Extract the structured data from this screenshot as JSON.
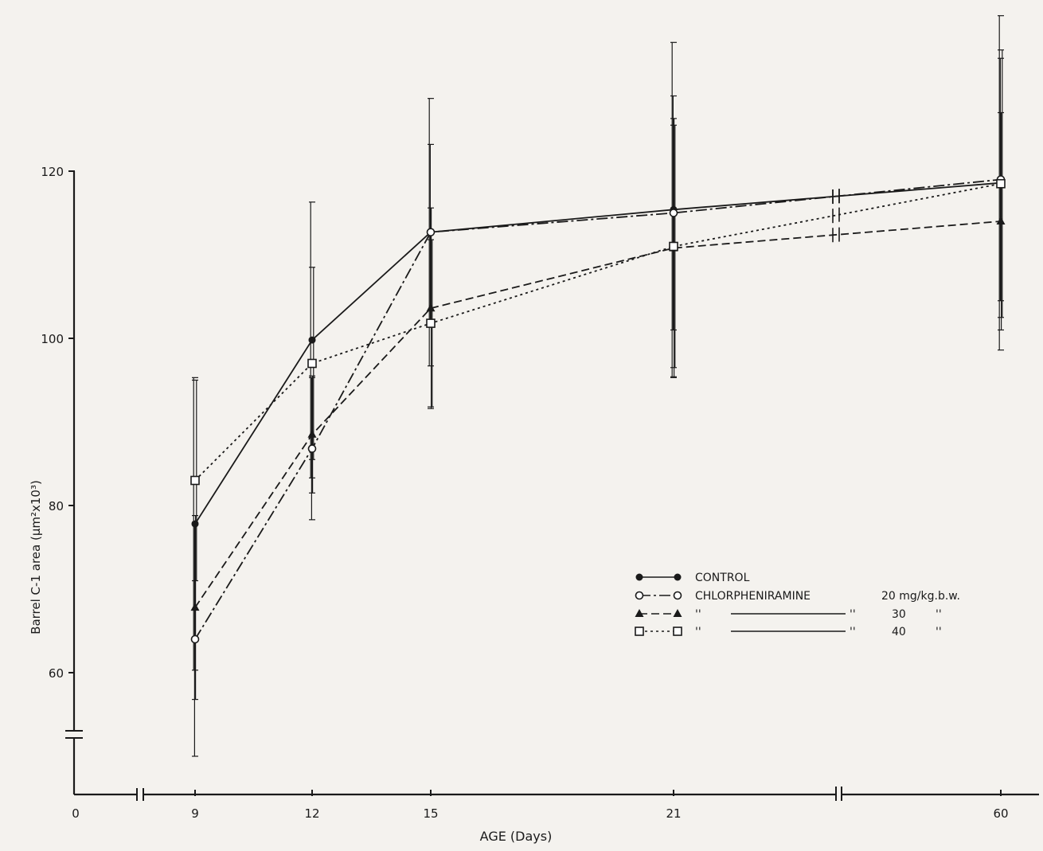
{
  "chart_data": {
    "type": "line",
    "xlabel": "AGE (Days)",
    "ylabel": "Barrel C-1 area (µm²x10³)",
    "x_ticks": [
      0,
      9,
      12,
      15,
      21,
      60
    ],
    "x_tick_labels": [
      "0",
      "9",
      "12",
      "15",
      "21",
      "60"
    ],
    "y_ticks": [
      60,
      80,
      100,
      120
    ],
    "ylim": [
      49,
      120
    ],
    "axis_breaks": [
      "x between 0 and 9",
      "x between 21 and 60",
      "y below 60"
    ],
    "grid": false,
    "legend_position": "lower-right",
    "series": [
      {
        "name": "CONTROL",
        "marker": "filled-circle",
        "line_style": "solid",
        "x": [
          9,
          12,
          15,
          21,
          60
        ],
        "y": [
          77.8,
          99.8,
          112.7,
          115.4,
          118.6
        ],
        "error": [
          17.5,
          16.5,
          16.0,
          20.0,
          20.0
        ]
      },
      {
        "name": "CHLORPHENIRAMINE 20 mg/kg.b.w.",
        "marker": "open-circle",
        "line_style": "dash-dot",
        "x": [
          9,
          12,
          15,
          21,
          60
        ],
        "y": [
          64.0,
          86.8,
          112.7,
          115.0,
          119.0
        ],
        "error": [
          14.0,
          8.5,
          10.5,
          14.0,
          14.5
        ]
      },
      {
        "name": "CHLORPHENIRAMINE 30 mg/kg.b.w.",
        "marker": "filled-triangle",
        "line_style": "dashed",
        "x": [
          9,
          12,
          15,
          21,
          60
        ],
        "y": [
          67.8,
          88.5,
          103.6,
          110.8,
          114.0
        ],
        "error": [
          11.0,
          7.0,
          12.0,
          15.5,
          13.0
        ]
      },
      {
        "name": "CHLORPHENIRAMINE 40 mg/kg.b.w.",
        "marker": "open-square",
        "line_style": "dotted",
        "x": [
          9,
          12,
          15,
          21,
          60
        ],
        "y": [
          83.0,
          97.0,
          101.8,
          111.0,
          118.5
        ],
        "error": [
          12.0,
          11.5,
          10.0,
          14.5,
          16.0
        ]
      }
    ],
    "legend": {
      "rows": [
        {
          "series": 0,
          "text": "CONTROL",
          "dose": "",
          "unit": ""
        },
        {
          "series": 1,
          "text": "CHLORPHENIRAMINE",
          "dose": "20",
          "unit": "mg/kg.b.w."
        },
        {
          "series": 2,
          "text": "''",
          "dose": "30",
          "unit": "''",
          "ditto_mid": "''"
        },
        {
          "series": 3,
          "text": "''",
          "dose": "40",
          "unit": "''",
          "ditto_mid": "''"
        }
      ]
    }
  },
  "colors": {
    "ink": "#1a1a1a",
    "paper": "#f4f2ee"
  }
}
